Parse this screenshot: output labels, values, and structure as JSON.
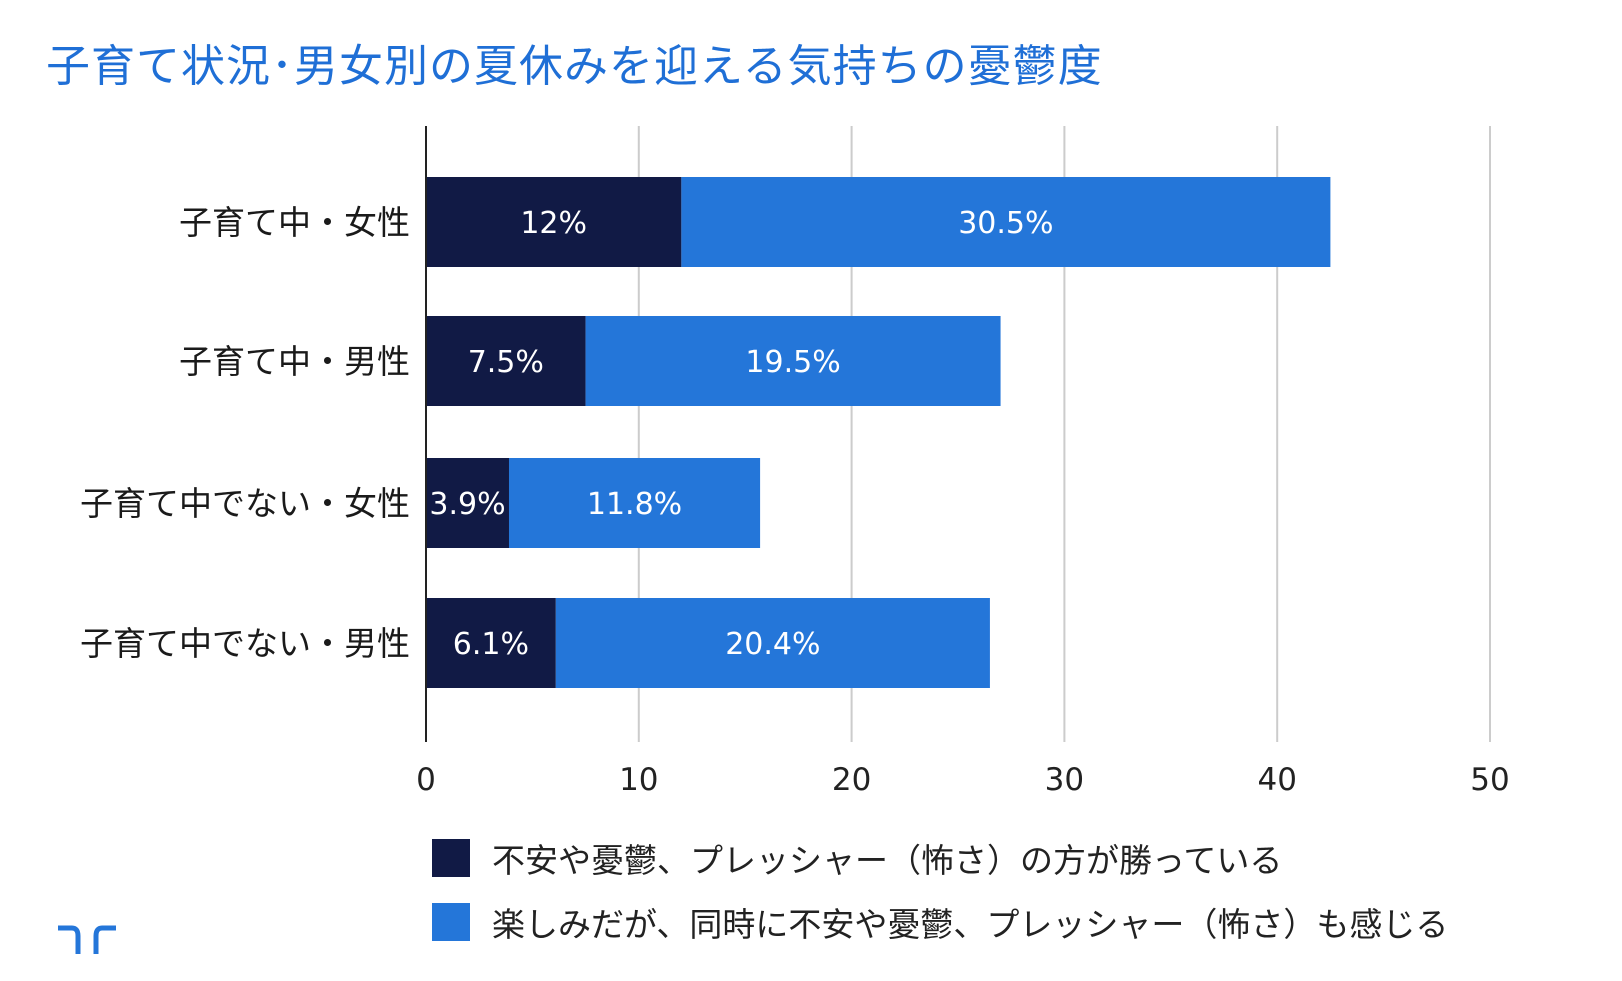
{
  "title": "子育て状況･男女別の夏休みを迎える気持ちの憂鬱度",
  "chart_data": {
    "type": "bar",
    "orientation": "horizontal",
    "stacked": true,
    "categories": [
      "子育て中・女性",
      "子育て中・男性",
      "子育て中でない・女性",
      "子育て中でない・男性"
    ],
    "series": [
      {
        "name": "不安や憂鬱、プレッシャー（怖さ）の方が勝っている",
        "color": "#111a45",
        "values": [
          12,
          7.5,
          3.9,
          6.1
        ],
        "labels": [
          "12%",
          "7.5%",
          "3.9%",
          "6.1%"
        ]
      },
      {
        "name": "楽しみだが、同時に不安や憂鬱、プレッシャー（怖さ）も感じる",
        "color": "#2476d9",
        "values": [
          30.5,
          19.5,
          11.8,
          20.4
        ],
        "labels": [
          "30.5%",
          "19.5%",
          "11.8%",
          "20.4%"
        ]
      }
    ],
    "xlim": [
      0,
      50
    ],
    "xticks": [
      "0",
      "10",
      "20",
      "30",
      "40",
      "50"
    ],
    "grid": true,
    "legend_position": "bottom"
  },
  "colors": {
    "title": "#1f6fd6",
    "grid": "#cccccc",
    "axis": "#222222"
  },
  "logo": "logo-icon"
}
